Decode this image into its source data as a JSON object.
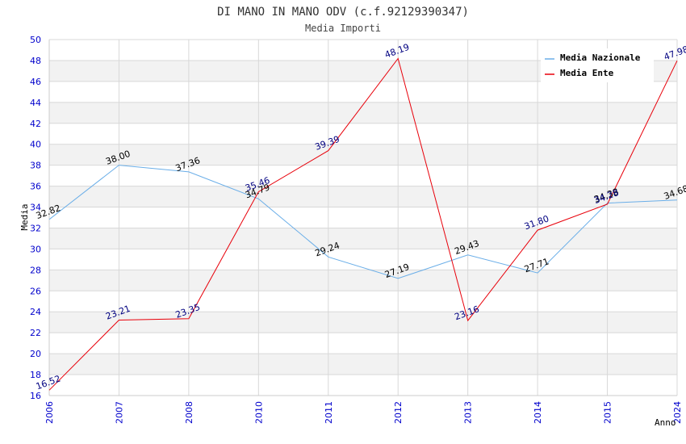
{
  "chart_data": {
    "type": "line",
    "title": "DI MANO IN MANO ODV (c.f.92129390347)",
    "subtitle": "Media Importi",
    "xlabel": "Anno",
    "ylabel": "Media",
    "ylim": [
      16,
      50
    ],
    "ytick_step": 2,
    "grid": true,
    "legend_position": "top-right",
    "categories": [
      "2006",
      "2007",
      "2008",
      "2010",
      "2011",
      "2012",
      "2013",
      "2014",
      "2015",
      "2024"
    ],
    "series": [
      {
        "name": "Media Nazionale",
        "color": "#6aaee8",
        "label_color": "#000000",
        "values": [
          32.82,
          38.0,
          37.36,
          34.79,
          29.24,
          27.19,
          29.43,
          27.71,
          34.38,
          34.68
        ],
        "labels": [
          "32.82",
          "38.00",
          "37.36",
          "34.79",
          "29.24",
          "27.19",
          "29.43",
          "27.71",
          "34.38",
          "34.68"
        ]
      },
      {
        "name": "Media Ente",
        "color": "#e8000a",
        "label_color": "#000080",
        "values": [
          16.52,
          23.21,
          23.35,
          35.46,
          39.39,
          48.19,
          23.16,
          31.8,
          34.28,
          47.98
        ],
        "labels": [
          "16.52",
          "23.21",
          "23.35",
          "35.46",
          "39.39",
          "48.19",
          "23.16",
          "31.80",
          "34.28",
          "47.98"
        ]
      }
    ],
    "colors": {
      "band": "#f2f2f2",
      "gridline": "#d8d8d8",
      "tick_label": "#0000cc",
      "title": "#333333"
    }
  }
}
